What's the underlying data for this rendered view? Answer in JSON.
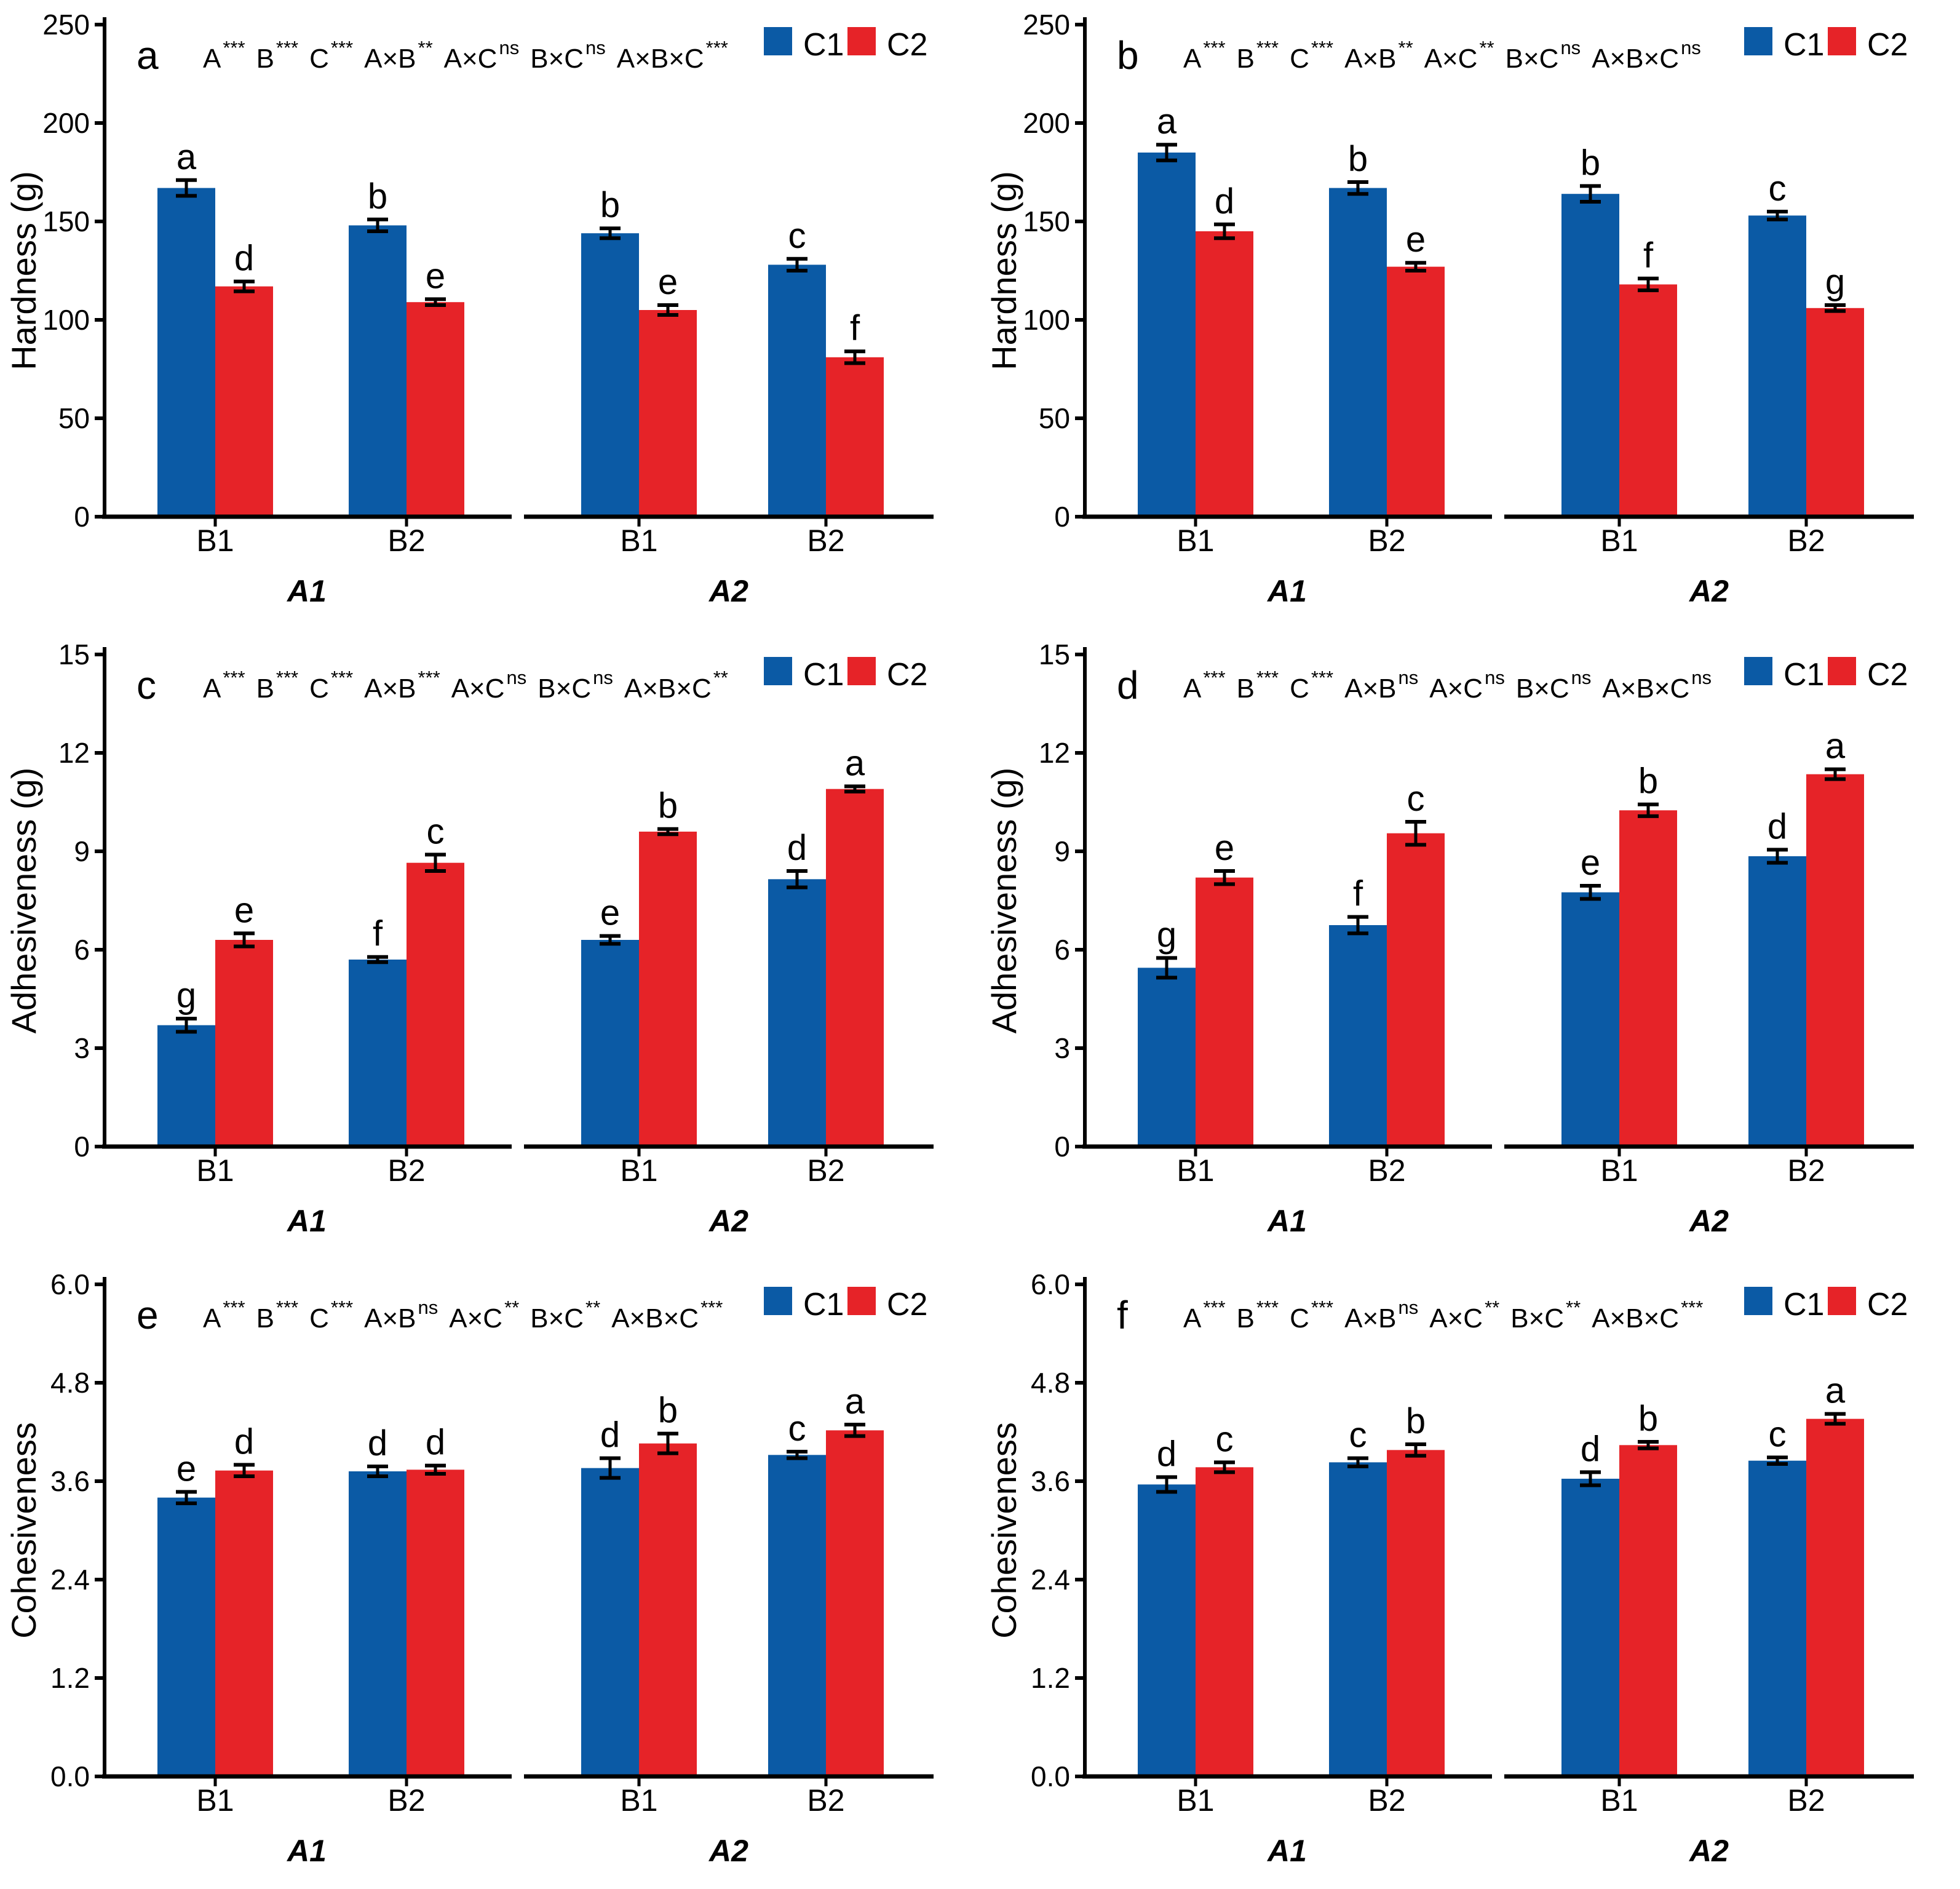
{
  "figure": {
    "legend": [
      "C1",
      "C2"
    ],
    "colors": {
      "c1": "#0B5AA5",
      "c2": "#E62328",
      "axis": "#000000"
    }
  },
  "chart_data": [
    {
      "panel": "a",
      "type": "bar",
      "ylabel": "Hardness (g)",
      "ytick_labels": [
        "0",
        "50",
        "100",
        "150",
        "200",
        "250"
      ],
      "ytick_values": [
        0,
        50,
        100,
        150,
        200,
        250
      ],
      "ylim": [
        0,
        250
      ],
      "anova": [
        [
          "A",
          "***"
        ],
        [
          "B",
          "***"
        ],
        [
          "C",
          "***"
        ],
        [
          "A×B",
          "**"
        ],
        [
          "A×C",
          "ns"
        ],
        [
          "B×C",
          "ns"
        ],
        [
          "A×B×C",
          "***"
        ]
      ],
      "series_names": [
        "C1",
        "C2"
      ],
      "groups": [
        {
          "label": "A1",
          "pairs": [
            {
              "sub": "B1",
              "c1": {
                "value": 167,
                "err": 4,
                "letter": "a"
              },
              "c2": {
                "value": 117,
                "err": 2.5,
                "letter": "d"
              }
            },
            {
              "sub": "B2",
              "c1": {
                "value": 148,
                "err": 3,
                "letter": "b"
              },
              "c2": {
                "value": 109,
                "err": 1.5,
                "letter": "e"
              }
            }
          ]
        },
        {
          "label": "A2",
          "pairs": [
            {
              "sub": "B1",
              "c1": {
                "value": 144,
                "err": 2.5,
                "letter": "b"
              },
              "c2": {
                "value": 105,
                "err": 2.5,
                "letter": "e"
              }
            },
            {
              "sub": "B2",
              "c1": {
                "value": 128,
                "err": 3,
                "letter": "c"
              },
              "c2": {
                "value": 81,
                "err": 3,
                "letter": "f"
              }
            }
          ]
        }
      ]
    },
    {
      "panel": "b",
      "type": "bar",
      "ylabel": "Hardness (g)",
      "ytick_labels": [
        "0",
        "50",
        "100",
        "150",
        "200",
        "250"
      ],
      "ytick_values": [
        0,
        50,
        100,
        150,
        200,
        250
      ],
      "ylim": [
        0,
        250
      ],
      "anova": [
        [
          "A",
          "***"
        ],
        [
          "B",
          "***"
        ],
        [
          "C",
          "***"
        ],
        [
          "A×B",
          "**"
        ],
        [
          "A×C",
          "**"
        ],
        [
          "B×C",
          "ns"
        ],
        [
          "A×B×C",
          "ns"
        ]
      ],
      "series_names": [
        "C1",
        "C2"
      ],
      "groups": [
        {
          "label": "A1",
          "pairs": [
            {
              "sub": "B1",
              "c1": {
                "value": 185,
                "err": 4,
                "letter": "a"
              },
              "c2": {
                "value": 145,
                "err": 3.5,
                "letter": "d"
              }
            },
            {
              "sub": "B2",
              "c1": {
                "value": 167,
                "err": 3,
                "letter": "b"
              },
              "c2": {
                "value": 127,
                "err": 2,
                "letter": "e"
              }
            }
          ]
        },
        {
          "label": "A2",
          "pairs": [
            {
              "sub": "B1",
              "c1": {
                "value": 164,
                "err": 4,
                "letter": "b"
              },
              "c2": {
                "value": 118,
                "err": 3,
                "letter": "f"
              }
            },
            {
              "sub": "B2",
              "c1": {
                "value": 153,
                "err": 2,
                "letter": "c"
              },
              "c2": {
                "value": 106,
                "err": 1.5,
                "letter": "g"
              }
            }
          ]
        }
      ]
    },
    {
      "panel": "c",
      "type": "bar",
      "ylabel": "Adhesiveness (g)",
      "ytick_labels": [
        "0",
        "3",
        "6",
        "9",
        "12",
        "15"
      ],
      "ytick_values": [
        0,
        3,
        6,
        9,
        12,
        15
      ],
      "ylim": [
        0,
        15
      ],
      "anova": [
        [
          "A",
          "***"
        ],
        [
          "B",
          "***"
        ],
        [
          "C",
          "***"
        ],
        [
          "A×B",
          "***"
        ],
        [
          "A×C",
          "ns"
        ],
        [
          "B×C",
          "ns"
        ],
        [
          "A×B×C",
          "**"
        ]
      ],
      "series_names": [
        "C1",
        "C2"
      ],
      "groups": [
        {
          "label": "A1",
          "pairs": [
            {
              "sub": "B1",
              "c1": {
                "value": 3.7,
                "err": 0.2,
                "letter": "g"
              },
              "c2": {
                "value": 6.3,
                "err": 0.2,
                "letter": "e"
              }
            },
            {
              "sub": "B2",
              "c1": {
                "value": 5.7,
                "err": 0.08,
                "letter": "f"
              },
              "c2": {
                "value": 8.65,
                "err": 0.25,
                "letter": "c"
              }
            }
          ]
        },
        {
          "label": "A2",
          "pairs": [
            {
              "sub": "B1",
              "c1": {
                "value": 6.3,
                "err": 0.12,
                "letter": "e"
              },
              "c2": {
                "value": 9.6,
                "err": 0.08,
                "letter": "b"
              }
            },
            {
              "sub": "B2",
              "c1": {
                "value": 8.15,
                "err": 0.25,
                "letter": "d"
              },
              "c2": {
                "value": 10.9,
                "err": 0.08,
                "letter": "a"
              }
            }
          ]
        }
      ]
    },
    {
      "panel": "d",
      "type": "bar",
      "ylabel": "Adhesiveness (g)",
      "ytick_labels": [
        "0",
        "3",
        "6",
        "9",
        "12",
        "15"
      ],
      "ytick_values": [
        0,
        3,
        6,
        9,
        12,
        15
      ],
      "ylim": [
        0,
        15
      ],
      "anova": [
        [
          "A",
          "***"
        ],
        [
          "B",
          "***"
        ],
        [
          "C",
          "***"
        ],
        [
          "A×B",
          "ns"
        ],
        [
          "A×C",
          "ns"
        ],
        [
          "B×C",
          "ns"
        ],
        [
          "A×B×C",
          "ns"
        ]
      ],
      "series_names": [
        "C1",
        "C2"
      ],
      "groups": [
        {
          "label": "A1",
          "pairs": [
            {
              "sub": "B1",
              "c1": {
                "value": 5.45,
                "err": 0.3,
                "letter": "g"
              },
              "c2": {
                "value": 8.2,
                "err": 0.2,
                "letter": "e"
              }
            },
            {
              "sub": "B2",
              "c1": {
                "value": 6.75,
                "err": 0.25,
                "letter": "f"
              },
              "c2": {
                "value": 9.55,
                "err": 0.35,
                "letter": "c"
              }
            }
          ]
        },
        {
          "label": "A2",
          "pairs": [
            {
              "sub": "B1",
              "c1": {
                "value": 7.75,
                "err": 0.2,
                "letter": "e"
              },
              "c2": {
                "value": 10.25,
                "err": 0.18,
                "letter": "b"
              }
            },
            {
              "sub": "B2",
              "c1": {
                "value": 8.85,
                "err": 0.2,
                "letter": "d"
              },
              "c2": {
                "value": 11.35,
                "err": 0.15,
                "letter": "a"
              }
            }
          ]
        }
      ]
    },
    {
      "panel": "e",
      "type": "bar",
      "ylabel": "Cohesiveness",
      "ytick_labels": [
        "0.0",
        "1.2",
        "2.4",
        "3.6",
        "4.8",
        "6.0"
      ],
      "ytick_values": [
        0,
        1.2,
        2.4,
        3.6,
        4.8,
        6.0
      ],
      "ylim": [
        0,
        6
      ],
      "anova": [
        [
          "A",
          "***"
        ],
        [
          "B",
          "***"
        ],
        [
          "C",
          "***"
        ],
        [
          "A×B",
          "ns"
        ],
        [
          "A×C",
          "**"
        ],
        [
          "B×C",
          "**"
        ],
        [
          "A×B×C",
          "***"
        ]
      ],
      "series_names": [
        "C1",
        "C2"
      ],
      "groups": [
        {
          "label": "A1",
          "pairs": [
            {
              "sub": "B1",
              "c1": {
                "value": 3.4,
                "err": 0.07,
                "letter": "e"
              },
              "c2": {
                "value": 3.73,
                "err": 0.07,
                "letter": "d"
              }
            },
            {
              "sub": "B2",
              "c1": {
                "value": 3.72,
                "err": 0.06,
                "letter": "d"
              },
              "c2": {
                "value": 3.74,
                "err": 0.05,
                "letter": "d"
              }
            }
          ]
        },
        {
          "label": "A2",
          "pairs": [
            {
              "sub": "B1",
              "c1": {
                "value": 3.76,
                "err": 0.12,
                "letter": "d"
              },
              "c2": {
                "value": 4.06,
                "err": 0.12,
                "letter": "b"
              }
            },
            {
              "sub": "B2",
              "c1": {
                "value": 3.92,
                "err": 0.04,
                "letter": "c"
              },
              "c2": {
                "value": 4.22,
                "err": 0.07,
                "letter": "a"
              }
            }
          ]
        }
      ]
    },
    {
      "panel": "f",
      "type": "bar",
      "ylabel": "Cohesiveness",
      "ytick_labels": [
        "0.0",
        "1.2",
        "2.4",
        "3.6",
        "4.8",
        "6.0"
      ],
      "ytick_values": [
        0,
        1.2,
        2.4,
        3.6,
        4.8,
        6.0
      ],
      "ylim": [
        0,
        6
      ],
      "anova": [
        [
          "A",
          "***"
        ],
        [
          "B",
          "***"
        ],
        [
          "C",
          "***"
        ],
        [
          "A×B",
          "ns"
        ],
        [
          "A×C",
          "**"
        ],
        [
          "B×C",
          "**"
        ],
        [
          "A×B×C",
          "***"
        ]
      ],
      "series_names": [
        "C1",
        "C2"
      ],
      "groups": [
        {
          "label": "A1",
          "pairs": [
            {
              "sub": "B1",
              "c1": {
                "value": 3.56,
                "err": 0.09,
                "letter": "d"
              },
              "c2": {
                "value": 3.77,
                "err": 0.06,
                "letter": "c"
              }
            },
            {
              "sub": "B2",
              "c1": {
                "value": 3.83,
                "err": 0.05,
                "letter": "c"
              },
              "c2": {
                "value": 3.98,
                "err": 0.07,
                "letter": "b"
              }
            }
          ]
        },
        {
          "label": "A2",
          "pairs": [
            {
              "sub": "B1",
              "c1": {
                "value": 3.63,
                "err": 0.08,
                "letter": "d"
              },
              "c2": {
                "value": 4.04,
                "err": 0.04,
                "letter": "b"
              }
            },
            {
              "sub": "B2",
              "c1": {
                "value": 3.85,
                "err": 0.04,
                "letter": "c"
              },
              "c2": {
                "value": 4.36,
                "err": 0.06,
                "letter": "a"
              }
            }
          ]
        }
      ]
    }
  ]
}
